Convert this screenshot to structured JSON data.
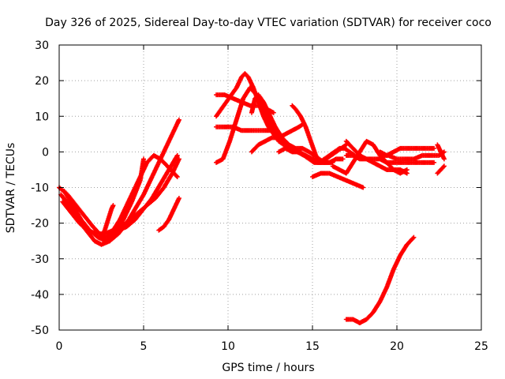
{
  "chart_data": {
    "type": "scatter",
    "title": "Day 326 of 2025, Sidereal Day-to-day VTEC variation (SDTVAR) for receiver coco",
    "xlabel": "GPS time / hours",
    "ylabel": "SDTVAR / TECUs",
    "xlim": [
      0,
      25
    ],
    "ylim": [
      -50,
      30
    ],
    "xticks": [
      0,
      5,
      10,
      15,
      20,
      25
    ],
    "yticks": [
      -50,
      -40,
      -30,
      -20,
      -10,
      0,
      10,
      20,
      30
    ],
    "grid": true,
    "legend": "none",
    "marker": "plus",
    "color": "#ff0000",
    "series": [
      {
        "x": [
          0.0,
          0.5,
          1.0,
          1.5,
          2.0,
          2.4,
          2.8,
          3.2,
          3.6,
          4.0,
          4.4,
          4.8,
          5.2,
          5.6,
          6.0,
          6.4,
          6.8,
          7.0
        ],
        "y": [
          -10,
          -12,
          -15,
          -18,
          -21,
          -23,
          -24,
          -22,
          -19,
          -15,
          -11,
          -7,
          -3,
          -1,
          -2,
          -4,
          -6,
          -7
        ]
      },
      {
        "x": [
          0.1,
          0.6,
          1.1,
          1.6,
          2.1,
          2.5,
          3.0,
          3.5,
          4.0,
          4.5,
          5.0,
          5.5,
          6.0,
          6.5,
          7.0,
          7.1
        ],
        "y": [
          -12,
          -15,
          -19,
          -22,
          -25,
          -26,
          -25,
          -23,
          -20,
          -16,
          -12,
          -7,
          -2,
          3,
          8,
          9
        ]
      },
      {
        "x": [
          0.3,
          0.8,
          1.3,
          1.8,
          2.3,
          2.8,
          3.3,
          3.8,
          4.3,
          4.8,
          5.0
        ],
        "y": [
          -11,
          -15,
          -19,
          -22,
          -24,
          -25,
          -23,
          -19,
          -14,
          -8,
          -2
        ]
      },
      {
        "x": [
          0.2,
          0.7,
          1.2,
          1.7,
          2.2,
          2.7,
          3.2,
          3.7,
          4.2,
          4.7,
          5.2,
          5.7,
          6.2,
          6.7,
          7.1
        ],
        "y": [
          -14,
          -17,
          -20,
          -22,
          -23,
          -23,
          -22,
          -21,
          -19,
          -17,
          -15,
          -13,
          -10,
          -6,
          -2
        ]
      },
      {
        "x": [
          2.5,
          2.7,
          2.9,
          3.1,
          3.2
        ],
        "y": [
          -24,
          -22,
          -19,
          -16,
          -15
        ]
      },
      {
        "x": [
          3.0,
          3.5,
          4.0,
          4.5,
          5.0,
          5.5,
          6.0,
          6.5,
          7.0
        ],
        "y": [
          -23,
          -22,
          -21,
          -19,
          -16,
          -13,
          -9,
          -5,
          -1
        ]
      },
      {
        "x": [
          5.9,
          6.2,
          6.5,
          6.8,
          7.1
        ],
        "y": [
          -22,
          -21,
          -19,
          -16,
          -13
        ]
      },
      {
        "x": [
          9.3,
          9.6,
          9.9,
          10.2,
          10.5,
          10.8,
          11.0,
          11.2,
          11.5,
          11.8,
          12.1,
          12.4,
          12.7,
          13.0,
          13.3,
          13.6,
          13.9,
          14.2,
          14.5,
          14.8,
          15.1,
          15.4,
          15.7,
          16.0,
          16.3,
          16.6,
          16.9,
          17.2,
          17.5
        ],
        "y": [
          10,
          12,
          14,
          16,
          18,
          21,
          22,
          21,
          18,
          14,
          10,
          7,
          5,
          3,
          2,
          2,
          1,
          0,
          -1,
          -2,
          -3,
          -3,
          -2,
          -1,
          0,
          1,
          1,
          0,
          -1
        ]
      },
      {
        "x": [
          9.3,
          9.7,
          10.1,
          10.5,
          10.9,
          11.3,
          11.7,
          12.1,
          12.5,
          12.9,
          13.3,
          13.7,
          14.1,
          14.5,
          14.9,
          15.3,
          15.7
        ],
        "y": [
          -3,
          -2,
          3,
          9,
          15,
          18,
          16,
          12,
          8,
          5,
          3,
          1,
          0,
          -1,
          -2,
          -3,
          -3
        ]
      },
      {
        "x": [
          9.3,
          9.8,
          10.3,
          10.8,
          11.3,
          11.8,
          12.3,
          12.7
        ],
        "y": [
          16,
          16,
          15,
          14,
          13,
          13,
          12,
          11
        ]
      },
      {
        "x": [
          9.3,
          9.8,
          10.3,
          10.8,
          11.3,
          11.8,
          12.3,
          12.7
        ],
        "y": [
          7,
          7,
          7,
          6,
          6,
          6,
          6,
          6
        ]
      },
      {
        "x": [
          11.4,
          11.6,
          11.8,
          12.1,
          12.4,
          12.8,
          13.2,
          13.6,
          14.0,
          14.4,
          14.8,
          15.1,
          15.4,
          15.7,
          16.0,
          16.4,
          16.8
        ],
        "y": [
          11,
          15,
          16,
          14,
          11,
          7,
          4,
          2,
          1,
          1,
          0,
          -1,
          -2,
          -3,
          -3,
          -2,
          -2
        ]
      },
      {
        "x": [
          11.4,
          11.8,
          12.2,
          12.6,
          13.0,
          13.4,
          13.8,
          14.2,
          14.5
        ],
        "y": [
          0,
          2,
          3,
          4,
          4,
          5,
          6,
          7,
          8
        ]
      },
      {
        "x": [
          13.0,
          13.4,
          13.8,
          14.2,
          14.6,
          15.0,
          15.4,
          15.8,
          16.2
        ],
        "y": [
          0,
          1,
          0,
          0,
          -1,
          -2,
          -3,
          -3,
          -3
        ]
      },
      {
        "x": [
          13.8,
          14.0,
          14.3,
          14.6,
          14.9,
          15.2,
          15.5,
          15.8,
          16.1,
          16.4,
          16.7,
          17.0
        ],
        "y": [
          13,
          12,
          10,
          7,
          3,
          -1,
          -3,
          -2,
          -1,
          0,
          1,
          2
        ]
      },
      {
        "x": [
          15.0,
          15.5,
          16.0,
          16.5,
          17.0,
          17.5,
          18.0
        ],
        "y": [
          -7,
          -6,
          -6,
          -7,
          -8,
          -9,
          -10
        ]
      },
      {
        "x": [
          16.2,
          16.6,
          17.0,
          17.4,
          17.8,
          18.2,
          18.6,
          19.0,
          19.4,
          19.8,
          20.2,
          20.6
        ],
        "y": [
          -4,
          -5,
          -6,
          -3,
          0,
          3,
          2,
          -1,
          -3,
          -5,
          -6,
          -5
        ]
      },
      {
        "x": [
          17.0,
          17.4,
          17.8,
          18.2,
          18.6,
          19.0,
          19.4,
          19.8,
          20.2,
          20.6
        ],
        "y": [
          3,
          1,
          -1,
          -2,
          -3,
          -4,
          -5,
          -5,
          -5,
          -6
        ]
      },
      {
        "x": [
          17.0,
          17.4,
          17.8,
          18.2,
          18.6,
          19.0,
          19.4,
          19.8,
          20.2,
          20.6,
          21.0,
          21.4,
          21.8,
          22.2
        ],
        "y": [
          -1,
          -1,
          -2,
          -2,
          -2,
          -2,
          -3,
          -3,
          -3,
          -3,
          -3,
          -3,
          -3,
          -3
        ]
      },
      {
        "x": [
          19.0,
          19.4,
          19.8,
          20.2,
          20.6,
          21.0,
          21.4,
          21.8,
          22.2
        ],
        "y": [
          0,
          -1,
          0,
          1,
          1,
          1,
          1,
          1,
          1
        ]
      },
      {
        "x": [
          19.0,
          19.5,
          20.0,
          20.5,
          21.0,
          21.5,
          22.0,
          22.5,
          22.8
        ],
        "y": [
          -1,
          -1,
          -2,
          -2,
          -2,
          -1,
          -1,
          -1,
          0
        ]
      },
      {
        "x": [
          22.4,
          22.6,
          22.8
        ],
        "y": [
          2,
          0,
          -2
        ]
      },
      {
        "x": [
          22.4,
          22.6,
          22.8
        ],
        "y": [
          -6,
          -5,
          -4
        ]
      },
      {
        "x": [
          17.0,
          17.4,
          17.8,
          18.2,
          18.6,
          19.0,
          19.4,
          19.8,
          20.2,
          20.6,
          21.0
        ],
        "y": [
          -47,
          -47,
          -48,
          -47,
          -45,
          -42,
          -38,
          -33,
          -29,
          -26,
          -24
        ]
      }
    ]
  }
}
